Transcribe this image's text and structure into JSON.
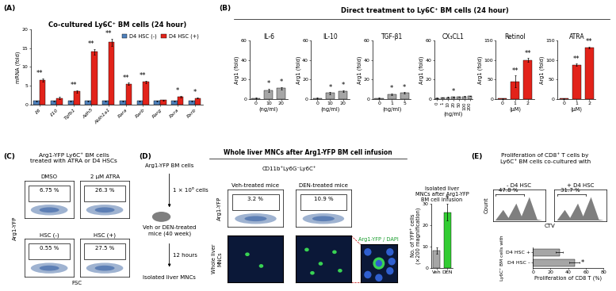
{
  "chart_data": [
    {
      "type": "bar",
      "title": "Co-cultured Ly6C⁺ BM cells (24 hour)",
      "y_label": "mRNA (fold)",
      "categories": [
        "Il6",
        "Il10",
        "Tgfb1",
        "Adh5",
        "Aldh1a1",
        "Rara",
        "Rarb",
        "Rarg",
        "Rxra",
        "Rxrb"
      ],
      "series": [
        {
          "name": "D4 HSC (-)",
          "color": "#4f81bd",
          "values": [
            1,
            1,
            1,
            1,
            1,
            1,
            1,
            1,
            1,
            1
          ],
          "errors": [
            0.1,
            0.1,
            0.1,
            0.1,
            0.1,
            0.1,
            0.1,
            0.1,
            0.1,
            0.1
          ]
        },
        {
          "name": "D4 HSC (+)",
          "color": "#e2231a",
          "values": [
            6.5,
            1.8,
            3.5,
            14,
            16.5,
            5.5,
            6,
            1.2,
            2.2,
            1.8
          ],
          "errors": [
            0.4,
            0.3,
            0.3,
            0.8,
            0.9,
            0.3,
            0.3,
            0.1,
            0.2,
            0.2
          ]
        }
      ],
      "significance": [
        "**",
        null,
        "**",
        "**",
        "**",
        "**",
        "**",
        null,
        "*",
        "*"
      ],
      "ylim": [
        0,
        20
      ],
      "yticks": [
        0,
        5,
        10,
        15,
        20
      ],
      "legend": "upper right"
    },
    {
      "type": "bar",
      "title": "IL-6",
      "y_label": "Arg1 (fold)",
      "x_label": "(ng/ml)",
      "categories": [
        "0",
        "10",
        "20"
      ],
      "series": [
        {
          "color": "#a6a6a6",
          "values": [
            1,
            9,
            11
          ],
          "errors": [
            0.2,
            1.5,
            1.2
          ]
        }
      ],
      "significance": [
        null,
        "*",
        "*"
      ],
      "ylim": [
        0,
        60
      ],
      "yticks": [
        0,
        20,
        40,
        60
      ]
    },
    {
      "type": "bar",
      "title": "IL-10",
      "y_label": "Arg1 (fold)",
      "x_label": "(ng/ml)",
      "categories": [
        "0",
        "10",
        "20"
      ],
      "series": [
        {
          "color": "#a6a6a6",
          "values": [
            1,
            6,
            8
          ],
          "errors": [
            0.2,
            1,
            1.2
          ]
        }
      ],
      "significance": [
        null,
        "*",
        "*"
      ],
      "ylim": [
        0,
        60
      ],
      "yticks": [
        0,
        20,
        40,
        60
      ]
    },
    {
      "type": "bar",
      "title": "TGF-β1",
      "y_label": "Arg1 (fold)",
      "x_label": "(ng/ml)",
      "categories": [
        "0",
        "1",
        "5"
      ],
      "series": [
        {
          "color": "#a6a6a6",
          "values": [
            1,
            5,
            6
          ],
          "errors": [
            0.2,
            0.8,
            0.8
          ]
        }
      ],
      "significance": [
        null,
        "*",
        "*"
      ],
      "ylim": [
        0,
        60
      ],
      "yticks": [
        0,
        20,
        40,
        60
      ]
    },
    {
      "type": "bar",
      "title": "CX₃CL1",
      "y_label": "Arg1 (fold)",
      "x_label": "(ng/ml)",
      "categories": [
        "0",
        "1",
        "10",
        "20",
        "50",
        "100",
        "200"
      ],
      "series": [
        {
          "color": "#a6a6a6",
          "values": [
            1,
            1.5,
            1.8,
            2,
            2.2,
            2.5,
            3
          ],
          "errors": [
            0.3,
            0.3,
            0.3,
            0.3,
            0.3,
            0.3,
            0.3
          ]
        }
      ],
      "significance": [
        null,
        null,
        null,
        "*",
        null,
        null,
        null
      ],
      "ylim": [
        0,
        60
      ],
      "yticks": [
        0,
        20,
        40,
        60
      ]
    },
    {
      "type": "bar",
      "title": "Retinol",
      "y_label": "Arg1 (fold)",
      "x_label": "(μM)",
      "categories": [
        "0",
        "1",
        "2"
      ],
      "series": [
        {
          "color": "#e2231a",
          "values": [
            1,
            45,
            100
          ],
          "errors": [
            0.5,
            15,
            5
          ]
        }
      ],
      "significance": [
        null,
        "**",
        "**"
      ],
      "ylim": [
        0,
        150
      ],
      "yticks": [
        0,
        50,
        100,
        150
      ]
    },
    {
      "type": "bar",
      "title": "ATRA",
      "y_label": "Arg1 (fold)",
      "x_label": "(μM)",
      "categories": [
        "0",
        "1",
        "2"
      ],
      "series": [
        {
          "color": "#e2231a",
          "values": [
            1,
            88,
            133
          ],
          "errors": [
            0.5,
            3,
            2
          ]
        }
      ],
      "significance": [
        null,
        "**",
        "**"
      ],
      "ylim": [
        0,
        150
      ],
      "yticks": [
        0,
        50,
        100,
        150
      ]
    },
    {
      "type": "bar",
      "title": "Isolated liver\nMNCs after Arg1-YFP\nBM cell infusion",
      "y_label": "No. of YFP⁺ cells\n(×200 magnification)",
      "categories": [
        "Veh",
        "DEN"
      ],
      "series": [
        {
          "colors": [
            "#a6a6a6",
            "#33cc33"
          ],
          "values": [
            8,
            26
          ],
          "errors": [
            1.5,
            4
          ]
        }
      ],
      "significance": [
        null,
        "*"
      ],
      "ylim": [
        0,
        30
      ],
      "yticks": [
        0,
        10,
        20,
        30
      ]
    },
    {
      "type": "bar",
      "orientation": "horizontal",
      "y_label": "Ly6C⁺ BM cells with",
      "x_label": "Proliferation of CD8 T (%)",
      "categories": [
        "D4 HSC +",
        "D4 HSC –"
      ],
      "series": [
        {
          "color": "#a6a6a6",
          "values": [
            30,
            47
          ],
          "errors": [
            4,
            6
          ]
        }
      ],
      "significance": [
        null,
        "*"
      ],
      "xlim": [
        0,
        80
      ],
      "xticks": [
        0,
        20,
        40,
        60,
        80
      ]
    }
  ],
  "panels": {
    "A": {
      "label": "(A)"
    },
    "B": {
      "label": "(B)",
      "title": "Direct treatment to Ly6C⁺ BM cells (24 hour)"
    },
    "C": {
      "label": "(C)",
      "title": "Arg1-YFP Ly6C⁺ BM cells\ntreated with ATRA or D4 HSCs",
      "y_label": "Arg1-YFP",
      "x_label": "FSC",
      "plots": [
        {
          "title": "DMSO",
          "gate": "6.75 %"
        },
        {
          "title": "2 μM ATRA",
          "gate": "26.3 %"
        },
        {
          "title": "HSC (-)",
          "gate": "0.55 %"
        },
        {
          "title": "HSC (+)",
          "gate": "27.5 %"
        }
      ]
    },
    "D": {
      "label": "(D)",
      "source": "Arg1-YFP BM cells",
      "dose": "1 × 10⁶ cells",
      "recipient": "Veh or DEN-treated\nmice (40 week)",
      "time": "12 hours",
      "output": "Isolated liver MNCs",
      "title": "Whole liver MNCs after Arg1-YFP BM cell infusion",
      "gating": "CD11b⁺Ly6G⁻Ly6C⁺",
      "y_label": "Arg1-YFP",
      "plots": [
        {
          "title": "Veh-treated mice",
          "gate": "3.2 %"
        },
        {
          "title": "DEN-treated mice",
          "gate": "10.9 %"
        }
      ],
      "image_row_label": "Whole liver\nMNCs",
      "zoom_label": "Arg1-YFP / DAPI"
    },
    "E": {
      "label": "(E)",
      "title": "Proliferation of CD8⁺ T cells by\nLy6C⁺ BM cells co-cultured with",
      "y_label": "Count",
      "x_label": "CTV",
      "plots": [
        {
          "title": "- D4 HSC",
          "gate": "47.8 %"
        },
        {
          "title": "+ D4 HSC",
          "gate": "31.7 %"
        }
      ]
    }
  }
}
